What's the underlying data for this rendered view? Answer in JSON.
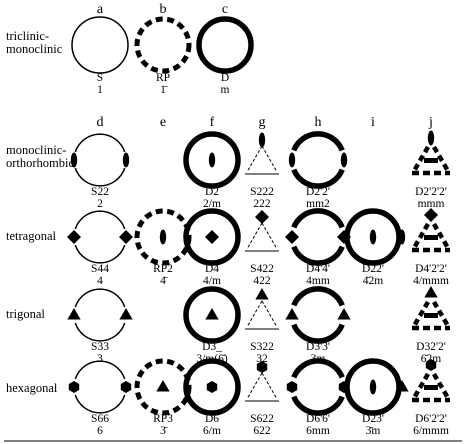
{
  "columns": [
    "a",
    "b",
    "c",
    "d",
    "e",
    "f",
    "g",
    "h",
    "i",
    "j"
  ],
  "rows": [
    {
      "label_lines": [
        "triclinic-",
        "monoclinic"
      ]
    },
    {
      "label_lines": [
        "monoclinic-",
        "orthorhombic"
      ]
    },
    {
      "label_lines": [
        "tetragonal"
      ]
    },
    {
      "label_lines": [
        "trigonal"
      ]
    },
    {
      "label_lines": [
        "hexagonal"
      ]
    }
  ],
  "cells": [
    {
      "row": 0,
      "col": "a",
      "type": "circle",
      "rotor": "none",
      "symbol": "S",
      "group": "1"
    },
    {
      "row": 0,
      "col": "b",
      "type": "dashed",
      "rotor": "none",
      "symbol": "RP",
      "group": "1̄"
    },
    {
      "row": 0,
      "col": "c",
      "type": "thick",
      "rotor": "none",
      "symbol": "D",
      "group": "m"
    },
    {
      "row": 1,
      "col": "d",
      "type": "arcs",
      "rotor": "ellipse",
      "symbol": "S22",
      "group": "2"
    },
    {
      "row": 1,
      "col": "f",
      "type": "thick",
      "rotor": "ellipse",
      "symbol": "D2",
      "group": "2/m"
    },
    {
      "row": 1,
      "col": "g",
      "type": "triangle-thin",
      "rotor": "ellipse",
      "symbol": "S222",
      "group": "222"
    },
    {
      "row": 1,
      "col": "h",
      "type": "thick-arcs",
      "rotor": "ellipse",
      "symbol": "D2'2'",
      "group": "mm2"
    },
    {
      "row": 1,
      "col": "j",
      "type": "triangle-thick",
      "rotor": "ellipse",
      "symbol": "D2'2'2'",
      "group": "mmm"
    },
    {
      "row": 2,
      "col": "d",
      "type": "arcs",
      "rotor": "diamond",
      "symbol": "S44",
      "group": "4"
    },
    {
      "row": 2,
      "col": "e",
      "type": "dashed",
      "rotor": "ellipse",
      "symbol": "RP2",
      "group": "4̄"
    },
    {
      "row": 2,
      "col": "f",
      "type": "thick",
      "rotor": "diamond",
      "symbol": "D4",
      "group": "4/m"
    },
    {
      "row": 2,
      "col": "g",
      "type": "triangle-thin",
      "rotor": "diamond",
      "symbol": "S422",
      "group": "422"
    },
    {
      "row": 2,
      "col": "h",
      "type": "thick-arcs",
      "rotor": "diamond",
      "symbol": "D4'4'",
      "group": "4mm"
    },
    {
      "row": 2,
      "col": "i",
      "type": "thick",
      "rotor": "ellipse-right",
      "symbol": "D22'",
      "group": "4̄2m"
    },
    {
      "row": 2,
      "col": "j",
      "type": "triangle-thick",
      "rotor": "diamond",
      "symbol": "D4'2'2'",
      "group": "4/mmm"
    },
    {
      "row": 3,
      "col": "d",
      "type": "arcs",
      "rotor": "triangle",
      "symbol": "S33",
      "group": "3"
    },
    {
      "row": 3,
      "col": "f",
      "type": "thick",
      "rotor": "triangle",
      "symbol": "D3_",
      "group": "3/m(6̄)"
    },
    {
      "row": 3,
      "col": "g",
      "type": "triangle-thin",
      "rotor": "triangle",
      "symbol": "S322",
      "group": "32"
    },
    {
      "row": 3,
      "col": "h",
      "type": "thick-arcs",
      "rotor": "triangle",
      "symbol": "D3'3'",
      "group": "3m"
    },
    {
      "row": 3,
      "col": "j",
      "type": "triangle-thick",
      "rotor": "triangle",
      "symbol": "D32'2'",
      "group": "6̄2m"
    },
    {
      "row": 4,
      "col": "d",
      "type": "arcs",
      "rotor": "hexagon",
      "symbol": "S66",
      "group": "6"
    },
    {
      "row": 4,
      "col": "e",
      "type": "dashed",
      "rotor": "triangle",
      "symbol": "RP3",
      "group": "3̄"
    },
    {
      "row": 4,
      "col": "f",
      "type": "thick",
      "rotor": "hexagon",
      "symbol": "D6",
      "group": "6/m"
    },
    {
      "row": 4,
      "col": "g",
      "type": "triangle-thin",
      "rotor": "hexagon",
      "symbol": "S622",
      "group": "622"
    },
    {
      "row": 4,
      "col": "h",
      "type": "thick-arcs",
      "rotor": "hexagon",
      "symbol": "D6'6'",
      "group": "6mm"
    },
    {
      "row": 4,
      "col": "i",
      "type": "thick",
      "rotor": "ellipse-triangle",
      "symbol": "D23'",
      "group": "3̄m"
    },
    {
      "row": 4,
      "col": "j",
      "type": "triangle-thick",
      "rotor": "hexagon",
      "symbol": "D6'2'2'",
      "group": "6/mmm"
    }
  ]
}
